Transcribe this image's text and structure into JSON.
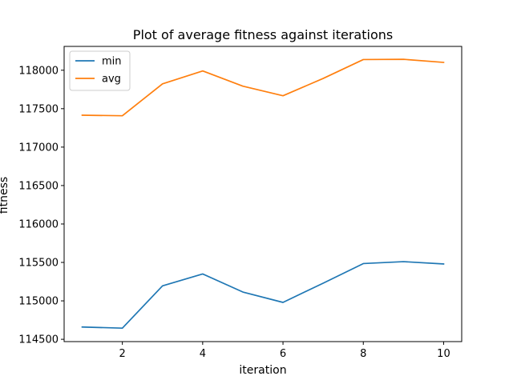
{
  "chart_data": {
    "type": "line",
    "title": "Plot of average fitness against iterations",
    "xlabel": "iteration",
    "ylabel": "fitness",
    "x": [
      1,
      2,
      3,
      4,
      5,
      6,
      7,
      8,
      9,
      10
    ],
    "series": [
      {
        "name": "min",
        "color": "#1f77b4",
        "values": [
          114660,
          114645,
          115195,
          115350,
          115115,
          114980,
          115230,
          115485,
          115510,
          115480
        ]
      },
      {
        "name": "avg",
        "color": "#ff7f0e",
        "values": [
          117415,
          117408,
          117823,
          117991,
          117793,
          117668,
          117893,
          118139,
          118142,
          118102
        ]
      }
    ],
    "xlim": [
      0.55,
      10.45
    ],
    "ylim": [
      114470,
      118310
    ],
    "xticks": [
      2,
      4,
      6,
      8,
      10
    ],
    "yticks": [
      114500,
      115000,
      115500,
      116000,
      116500,
      117000,
      117500,
      118000
    ],
    "grid": false,
    "legend_position": "upper-left"
  }
}
